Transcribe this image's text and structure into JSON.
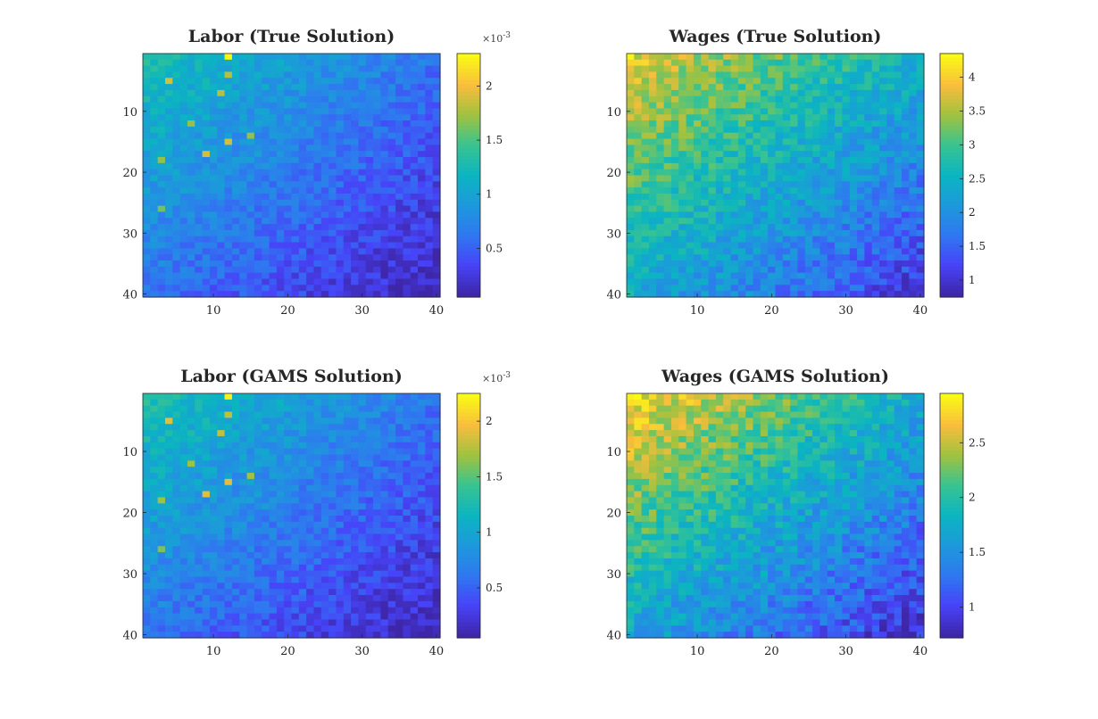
{
  "chart_data": [
    {
      "type": "heatmap",
      "title": "Labor (True Solution)",
      "rows": 40,
      "cols": 40,
      "xticks": [
        "10",
        "20",
        "30",
        "40"
      ],
      "yticks": [
        "10",
        "20",
        "30",
        "40"
      ],
      "clim": [
        5e-05,
        0.0023
      ],
      "colorbar": {
        "ticks": [
          0.5,
          1,
          1.5,
          2
        ],
        "tick_labels": [
          "0.5",
          "1",
          "1.5",
          "2"
        ],
        "exponent_label": "×10",
        "exponent_power": "-3",
        "scale": 0.001
      },
      "value_model": {
        "corner_top_left": 0.0013,
        "corner_top_right": 0.0006,
        "corner_bottom_left": 0.0006,
        "corner_bottom_right": 8e-05
      },
      "seed": 11,
      "highlights": [
        [
          1,
          12,
          0.0023
        ],
        [
          5,
          4,
          0.0019
        ],
        [
          4,
          12,
          0.0018
        ],
        [
          15,
          12,
          0.0019
        ],
        [
          17,
          9,
          0.0019
        ],
        [
          14,
          15,
          0.0017
        ],
        [
          12,
          7,
          0.0017
        ],
        [
          18,
          3,
          0.0017
        ],
        [
          26,
          3,
          0.0016
        ],
        [
          7,
          11,
          0.0018
        ]
      ]
    },
    {
      "type": "heatmap",
      "title": "Wages (True Solution)",
      "rows": 40,
      "cols": 40,
      "xticks": [
        "10",
        "20",
        "30",
        "40"
      ],
      "yticks": [
        "10",
        "20",
        "30",
        "40"
      ],
      "clim": [
        0.75,
        4.35
      ],
      "colorbar": {
        "ticks": [
          1,
          1.5,
          2,
          2.5,
          3,
          3.5,
          4
        ],
        "tick_labels": [
          "1",
          "1.5",
          "2",
          "2.5",
          "3",
          "3.5",
          "4"
        ],
        "exponent_label": "",
        "exponent_power": "",
        "scale": 1
      },
      "value_model": {
        "corner_top_left": 3.8,
        "corner_top_right": 2.5,
        "corner_bottom_left": 2.4,
        "corner_bottom_right": 1.05
      },
      "seed": 23,
      "highlights": [
        [
          1,
          1,
          4.3
        ],
        [
          2,
          3,
          4.1
        ]
      ]
    },
    {
      "type": "heatmap",
      "title": "Labor (GAMS Solution)",
      "rows": 40,
      "cols": 40,
      "xticks": [
        "10",
        "20",
        "30",
        "40"
      ],
      "yticks": [
        "10",
        "20",
        "30",
        "40"
      ],
      "clim": [
        5e-05,
        0.00225
      ],
      "colorbar": {
        "ticks": [
          0.5,
          1,
          1.5,
          2
        ],
        "tick_labels": [
          "0.5",
          "1",
          "1.5",
          "2"
        ],
        "exponent_label": "×10",
        "exponent_power": "-3",
        "scale": 0.001
      },
      "value_model": {
        "corner_top_left": 0.0013,
        "corner_top_right": 0.0006,
        "corner_bottom_left": 0.0006,
        "corner_bottom_right": 8e-05
      },
      "seed": 11,
      "highlights": [
        [
          1,
          12,
          0.0022
        ],
        [
          5,
          4,
          0.0019
        ],
        [
          4,
          12,
          0.0018
        ],
        [
          15,
          12,
          0.0019
        ],
        [
          17,
          9,
          0.0019
        ],
        [
          14,
          15,
          0.0017
        ],
        [
          12,
          7,
          0.0017
        ],
        [
          18,
          3,
          0.0017
        ],
        [
          26,
          3,
          0.0016
        ],
        [
          7,
          11,
          0.0018
        ]
      ]
    },
    {
      "type": "heatmap",
      "title": "Wages (GAMS Solution)",
      "rows": 40,
      "cols": 40,
      "xticks": [
        "10",
        "20",
        "30",
        "40"
      ],
      "yticks": [
        "10",
        "20",
        "30",
        "40"
      ],
      "clim": [
        0.72,
        2.95
      ],
      "colorbar": {
        "ticks": [
          1,
          1.5,
          2,
          2.5
        ],
        "tick_labels": [
          "1",
          "1.5",
          "2",
          "2.5"
        ],
        "exponent_label": "",
        "exponent_power": "",
        "scale": 1
      },
      "value_model": {
        "corner_top_left": 2.75,
        "corner_top_right": 1.75,
        "corner_bottom_left": 1.65,
        "corner_bottom_right": 0.85
      },
      "seed": 37,
      "highlights": [
        [
          1,
          1,
          2.9
        ],
        [
          2,
          2,
          2.85
        ]
      ]
    }
  ],
  "colormap": [
    "#3e26a8",
    "#4743f8",
    "#2f78f0",
    "#1d99db",
    "#0bb5c0",
    "#39c391",
    "#a0c240",
    "#f9bd3c",
    "#f9fb15"
  ]
}
